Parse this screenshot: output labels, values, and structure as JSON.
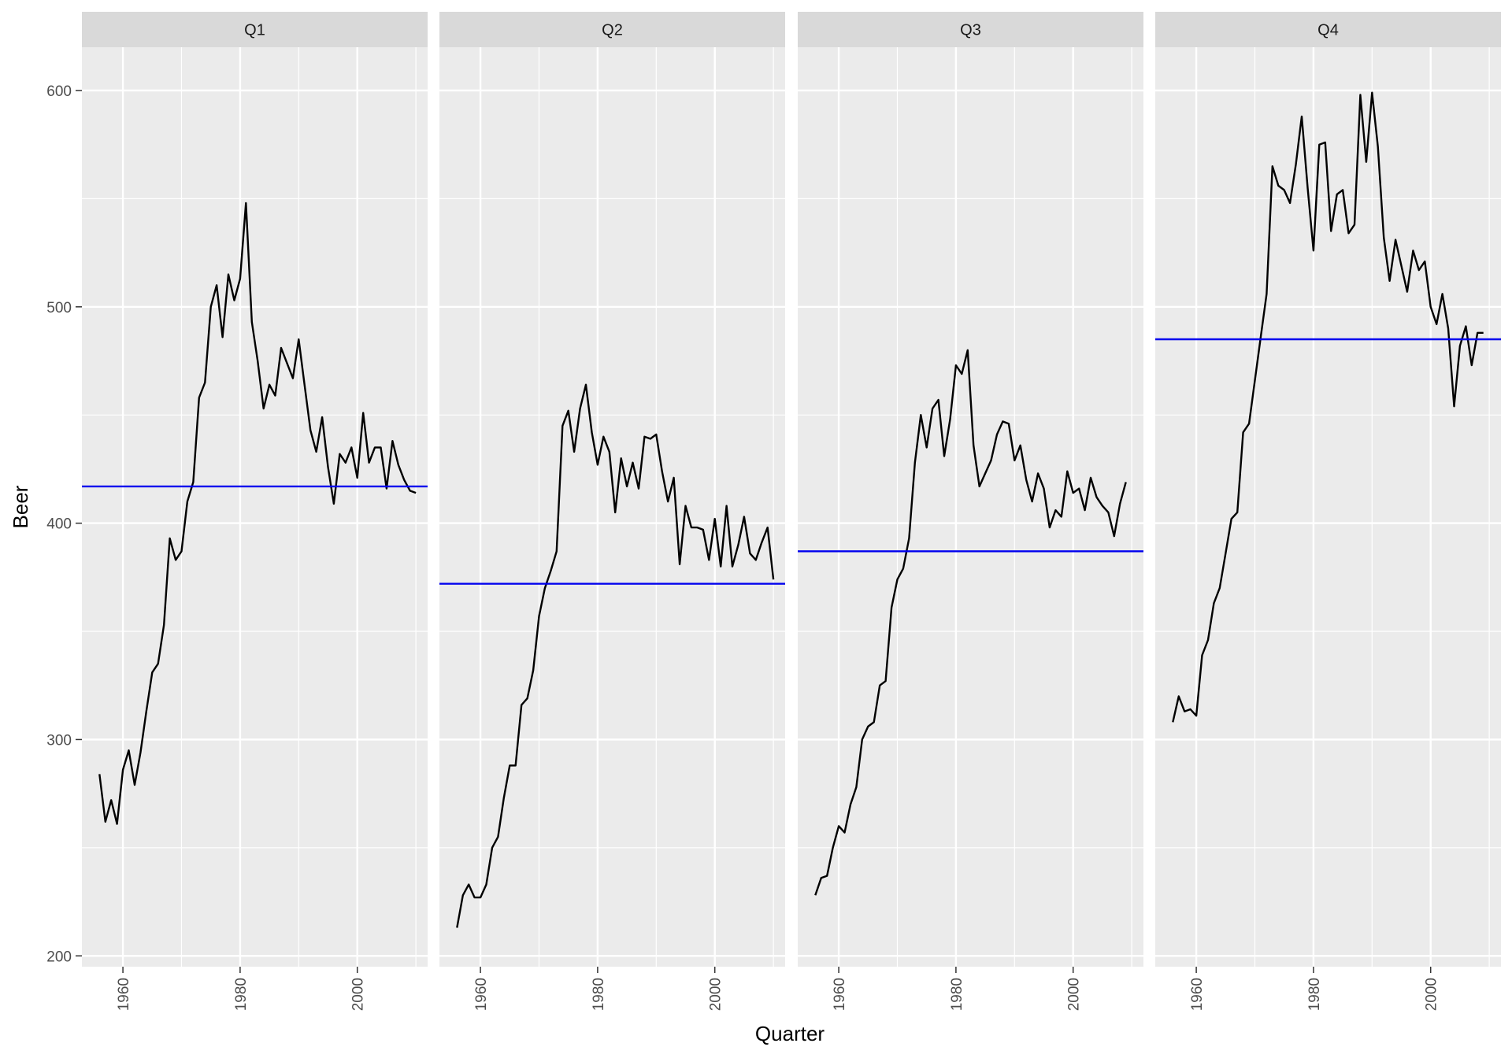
{
  "chart_data": {
    "type": "line",
    "facet_by": "quarter",
    "xlabel": "Quarter",
    "ylabel": "Beer",
    "ylim": [
      195,
      620
    ],
    "xlim": [
      1953,
      2012
    ],
    "y_ticks": [
      200,
      300,
      400,
      500,
      600
    ],
    "x_ticks": [
      1960,
      1980,
      2000
    ],
    "colors": {
      "series": "#000000",
      "mean_line": "#0000ee",
      "panel_bg": "#ebebeb",
      "strip_bg": "#d9d9d9",
      "grid": "#ffffff"
    },
    "panels": [
      {
        "label": "Q1",
        "mean": 417,
        "points": [
          [
            1956,
            284
          ],
          [
            1957,
            262
          ],
          [
            1958,
            272
          ],
          [
            1959,
            261
          ],
          [
            1960,
            286
          ],
          [
            1961,
            295
          ],
          [
            1962,
            279
          ],
          [
            1963,
            294
          ],
          [
            1964,
            313
          ],
          [
            1965,
            331
          ],
          [
            1966,
            335
          ],
          [
            1967,
            353
          ],
          [
            1968,
            393
          ],
          [
            1969,
            383
          ],
          [
            1970,
            387
          ],
          [
            1971,
            410
          ],
          [
            1972,
            419
          ],
          [
            1973,
            458
          ],
          [
            1974,
            465
          ],
          [
            1975,
            500
          ],
          [
            1976,
            510
          ],
          [
            1977,
            486
          ],
          [
            1978,
            515
          ],
          [
            1979,
            503
          ],
          [
            1980,
            513
          ],
          [
            1981,
            548
          ],
          [
            1982,
            493
          ],
          [
            1983,
            475
          ],
          [
            1984,
            453
          ],
          [
            1985,
            464
          ],
          [
            1986,
            459
          ],
          [
            1987,
            481
          ],
          [
            1988,
            474
          ],
          [
            1989,
            467
          ],
          [
            1990,
            485
          ],
          [
            1991,
            464
          ],
          [
            1992,
            443
          ],
          [
            1993,
            433
          ],
          [
            1994,
            449
          ],
          [
            1995,
            426
          ],
          [
            1996,
            409
          ],
          [
            1997,
            432
          ],
          [
            1998,
            428
          ],
          [
            1999,
            435
          ],
          [
            2000,
            421
          ],
          [
            2001,
            451
          ],
          [
            2002,
            428
          ],
          [
            2003,
            435
          ],
          [
            2004,
            435
          ],
          [
            2005,
            416
          ],
          [
            2006,
            438
          ],
          [
            2007,
            427
          ],
          [
            2008,
            420
          ],
          [
            2009,
            415
          ],
          [
            2010,
            414
          ]
        ]
      },
      {
        "label": "Q2",
        "mean": 372,
        "points": [
          [
            1956,
            213
          ],
          [
            1957,
            228
          ],
          [
            1958,
            233
          ],
          [
            1959,
            227
          ],
          [
            1960,
            227
          ],
          [
            1961,
            233
          ],
          [
            1962,
            250
          ],
          [
            1963,
            255
          ],
          [
            1964,
            273
          ],
          [
            1965,
            288
          ],
          [
            1966,
            288
          ],
          [
            1967,
            316
          ],
          [
            1968,
            319
          ],
          [
            1969,
            332
          ],
          [
            1970,
            357
          ],
          [
            1971,
            370
          ],
          [
            1972,
            378
          ],
          [
            1973,
            387
          ],
          [
            1974,
            445
          ],
          [
            1975,
            452
          ],
          [
            1976,
            433
          ],
          [
            1977,
            453
          ],
          [
            1978,
            464
          ],
          [
            1979,
            442
          ],
          [
            1980,
            427
          ],
          [
            1981,
            440
          ],
          [
            1982,
            433
          ],
          [
            1983,
            405
          ],
          [
            1984,
            430
          ],
          [
            1985,
            417
          ],
          [
            1986,
            428
          ],
          [
            1987,
            416
          ],
          [
            1988,
            440
          ],
          [
            1989,
            439
          ],
          [
            1990,
            441
          ],
          [
            1991,
            424
          ],
          [
            1992,
            410
          ],
          [
            1993,
            421
          ],
          [
            1994,
            381
          ],
          [
            1995,
            408
          ],
          [
            1996,
            398
          ],
          [
            1997,
            398
          ],
          [
            1998,
            397
          ],
          [
            1999,
            383
          ],
          [
            2000,
            402
          ],
          [
            2001,
            380
          ],
          [
            2002,
            408
          ],
          [
            2003,
            380
          ],
          [
            2004,
            390
          ],
          [
            2005,
            403
          ],
          [
            2006,
            386
          ],
          [
            2007,
            383
          ],
          [
            2008,
            391
          ],
          [
            2009,
            398
          ],
          [
            2010,
            374
          ]
        ]
      },
      {
        "label": "Q3",
        "mean": 387,
        "points": [
          [
            1956,
            228
          ],
          [
            1957,
            236
          ],
          [
            1958,
            237
          ],
          [
            1959,
            250
          ],
          [
            1960,
            260
          ],
          [
            1961,
            257
          ],
          [
            1962,
            270
          ],
          [
            1963,
            278
          ],
          [
            1964,
            300
          ],
          [
            1965,
            306
          ],
          [
            1966,
            308
          ],
          [
            1967,
            325
          ],
          [
            1968,
            327
          ],
          [
            1969,
            361
          ],
          [
            1970,
            374
          ],
          [
            1971,
            379
          ],
          [
            1972,
            393
          ],
          [
            1973,
            428
          ],
          [
            1974,
            450
          ],
          [
            1975,
            435
          ],
          [
            1976,
            453
          ],
          [
            1977,
            457
          ],
          [
            1978,
            431
          ],
          [
            1979,
            448
          ],
          [
            1980,
            473
          ],
          [
            1981,
            469
          ],
          [
            1982,
            480
          ],
          [
            1983,
            436
          ],
          [
            1984,
            417
          ],
          [
            1985,
            423
          ],
          [
            1986,
            429
          ],
          [
            1987,
            441
          ],
          [
            1988,
            447
          ],
          [
            1989,
            446
          ],
          [
            1990,
            429
          ],
          [
            1991,
            436
          ],
          [
            1992,
            420
          ],
          [
            1993,
            410
          ],
          [
            1994,
            423
          ],
          [
            1995,
            416
          ],
          [
            1996,
            398
          ],
          [
            1997,
            406
          ],
          [
            1998,
            403
          ],
          [
            1999,
            424
          ],
          [
            2000,
            414
          ],
          [
            2001,
            416
          ],
          [
            2002,
            406
          ],
          [
            2003,
            421
          ],
          [
            2004,
            412
          ],
          [
            2005,
            408
          ],
          [
            2006,
            405
          ],
          [
            2007,
            394
          ],
          [
            2008,
            409
          ],
          [
            2009,
            419
          ]
        ]
      },
      {
        "label": "Q4",
        "mean": 485,
        "points": [
          [
            1956,
            308
          ],
          [
            1957,
            320
          ],
          [
            1958,
            313
          ],
          [
            1959,
            314
          ],
          [
            1960,
            311
          ],
          [
            1961,
            339
          ],
          [
            1962,
            346
          ],
          [
            1963,
            363
          ],
          [
            1964,
            370
          ],
          [
            1965,
            386
          ],
          [
            1966,
            402
          ],
          [
            1967,
            405
          ],
          [
            1968,
            442
          ],
          [
            1969,
            446
          ],
          [
            1970,
            466
          ],
          [
            1971,
            486
          ],
          [
            1972,
            506
          ],
          [
            1973,
            565
          ],
          [
            1974,
            556
          ],
          [
            1975,
            554
          ],
          [
            1976,
            548
          ],
          [
            1977,
            566
          ],
          [
            1978,
            588
          ],
          [
            1979,
            555
          ],
          [
            1980,
            526
          ],
          [
            1981,
            575
          ],
          [
            1982,
            576
          ],
          [
            1983,
            535
          ],
          [
            1984,
            552
          ],
          [
            1985,
            554
          ],
          [
            1986,
            534
          ],
          [
            1987,
            538
          ],
          [
            1988,
            598
          ],
          [
            1989,
            567
          ],
          [
            1990,
            599
          ],
          [
            1991,
            574
          ],
          [
            1992,
            532
          ],
          [
            1993,
            512
          ],
          [
            1994,
            531
          ],
          [
            1995,
            519
          ],
          [
            1996,
            507
          ],
          [
            1997,
            526
          ],
          [
            1998,
            517
          ],
          [
            1999,
            521
          ],
          [
            2000,
            500
          ],
          [
            2001,
            492
          ],
          [
            2002,
            506
          ],
          [
            2003,
            490
          ],
          [
            2004,
            454
          ],
          [
            2005,
            482
          ],
          [
            2006,
            491
          ],
          [
            2007,
            473
          ],
          [
            2008,
            488
          ],
          [
            2009,
            488
          ]
        ]
      }
    ]
  }
}
